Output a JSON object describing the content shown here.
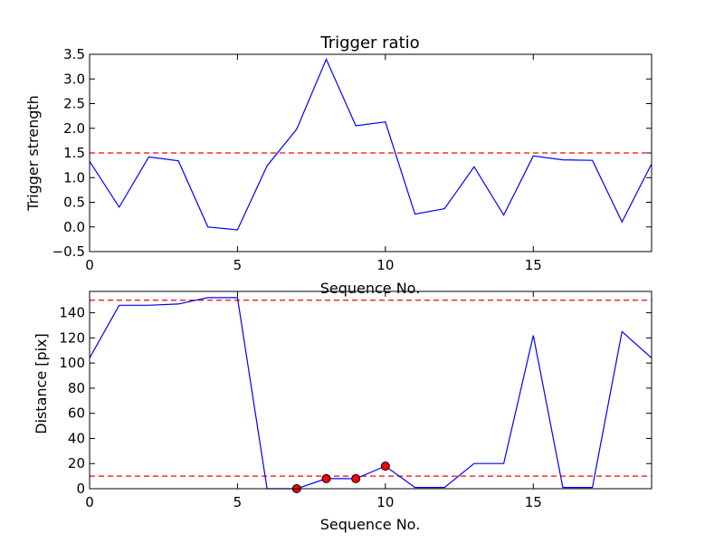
{
  "chart_data": [
    {
      "type": "line",
      "title": "Trigger ratio",
      "xlabel": "Sequence No.",
      "ylabel": "Trigger strength",
      "xlim": [
        0,
        19
      ],
      "ylim": [
        -0.5,
        3.5
      ],
      "x_ticks": [
        "0",
        "5",
        "10",
        "15"
      ],
      "y_ticks": [
        "−0.5",
        "0.0",
        "0.5",
        "1.0",
        "1.5",
        "2.0",
        "2.5",
        "3.0",
        "3.5"
      ],
      "grid": false,
      "series": [
        {
          "color": "#0000ff",
          "x": [
            0,
            1,
            2,
            3,
            4,
            5,
            6,
            7,
            8,
            9,
            10,
            11,
            12,
            13,
            14,
            15,
            16,
            17,
            18,
            19
          ],
          "values": [
            1.33,
            0.4,
            1.42,
            1.34,
            0.0,
            -0.06,
            1.24,
            1.98,
            3.4,
            2.05,
            2.13,
            0.26,
            0.37,
            1.22,
            0.24,
            1.44,
            1.36,
            1.35,
            0.1,
            1.28
          ]
        }
      ],
      "threshold_lines": [
        {
          "y": 1.5,
          "color": "#ff0000",
          "style": "dashed"
        }
      ]
    },
    {
      "type": "line",
      "title": "",
      "xlabel": "Sequence No.",
      "ylabel": "Distance [pix]",
      "xlim": [
        0,
        19
      ],
      "ylim": [
        0,
        157
      ],
      "x_ticks": [
        "0",
        "5",
        "10",
        "15"
      ],
      "y_ticks": [
        "0",
        "20",
        "40",
        "60",
        "80",
        "100",
        "120",
        "140"
      ],
      "grid": false,
      "series": [
        {
          "color": "#0000ff",
          "x": [
            0,
            1,
            2,
            3,
            4,
            5,
            6,
            7,
            8,
            9,
            10,
            11,
            12,
            13,
            14,
            15,
            16,
            17,
            18,
            19
          ],
          "values": [
            104,
            146,
            146,
            147,
            152,
            152,
            0,
            0,
            8,
            8,
            18,
            1,
            1,
            20,
            20,
            122,
            1,
            1,
            125,
            104
          ]
        }
      ],
      "markers": {
        "color": "#ff0000",
        "x": [
          7,
          8,
          9,
          10
        ],
        "values": [
          0,
          8,
          8,
          18
        ]
      },
      "threshold_lines": [
        {
          "y": 150,
          "color": "#ff0000",
          "style": "dashed"
        },
        {
          "y": 10,
          "color": "#ff0000",
          "style": "dashed"
        }
      ]
    }
  ]
}
